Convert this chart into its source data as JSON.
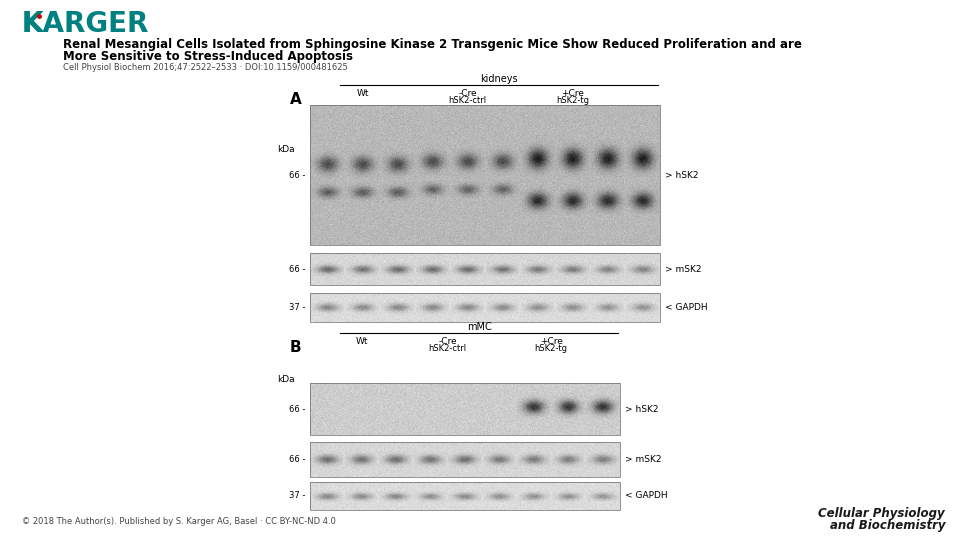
{
  "bg_color": "#ffffff",
  "karger_color": "#008080",
  "karger_dot_color": "#cc0000",
  "title_line1": "Renal Mesangial Cells Isolated from Sphingosine Kinase 2 Transgenic Mice Show Reduced Proliferation and are",
  "title_line2": "More Sensitive to Stress-Induced Apoptosis",
  "citation": "Cell Physiol Biochem 2016;47:2522–2533 · DOI:10.1159/000481625",
  "panel_A_label": "A",
  "panel_B_label": "B",
  "panel_A_title": "kidneys",
  "panel_B_title": "mMC",
  "col_wt": "Wt",
  "col_neg_cre_1": "-Cre",
  "col_neg_cre_2": "hSK2-ctrl",
  "col_pos_cre_1": "+Cre",
  "col_pos_cre_2": "hSK2-tg",
  "label_hSK2": "> hSK2",
  "label_mSK2": "> mSK2",
  "label_GAPDH": "< GAPDH",
  "label_kDa": "kDa",
  "footer_text": "© 2018 The Author(s). Published by S. Karger AG, Basel · CC BY-NC-ND 4.0",
  "journal_name_line1": "Cellular Physiology",
  "journal_name_line2": "and Biochemistry",
  "fig_width": 9.6,
  "fig_height": 5.4
}
